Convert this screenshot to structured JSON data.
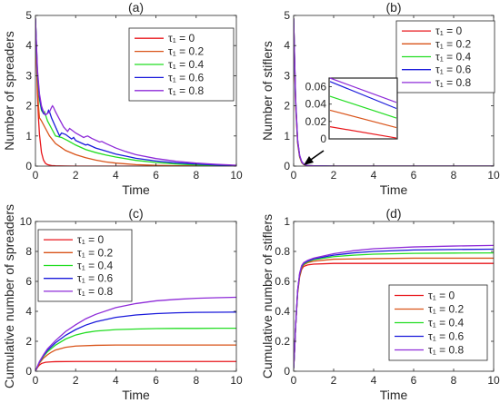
{
  "chart_data": [
    {
      "type": "line",
      "title": "(a)",
      "xlabel": "Time",
      "ylabel": "Number of spreaders",
      "xlim": [
        0,
        10
      ],
      "ylim": [
        0,
        5
      ],
      "xticks": [
        "0",
        "2",
        "4",
        "6",
        "8",
        "10"
      ],
      "yticks": [
        "0",
        "1",
        "2",
        "3",
        "4",
        "5"
      ],
      "legend_position": "top-right",
      "series": [
        {
          "name": "τ₁ = 0",
          "color": "#e8161b",
          "x": [
            0,
            0.05,
            0.1,
            0.15,
            0.2,
            0.3,
            0.4,
            0.5,
            0.6,
            0.8,
            1.0,
            1.2,
            1.5,
            2,
            3,
            5,
            10
          ],
          "y": [
            4.9,
            3.5,
            2.4,
            1.6,
            1.05,
            0.45,
            0.2,
            0.09,
            0.05,
            0.02,
            0.01,
            0.005,
            0.002,
            0.001,
            0,
            0,
            0
          ]
        },
        {
          "name": "τ₁ = 0.2",
          "color": "#d95319",
          "x": [
            0,
            0.05,
            0.1,
            0.15,
            0.2,
            0.25,
            0.3,
            0.5,
            0.7,
            1.0,
            1.5,
            2,
            2.5,
            3,
            3.5,
            4,
            5,
            6,
            7,
            8,
            10
          ],
          "y": [
            4.9,
            3.7,
            2.7,
            2.0,
            1.6,
            1.55,
            1.5,
            1.25,
            1.0,
            0.75,
            0.52,
            0.38,
            0.28,
            0.2,
            0.14,
            0.1,
            0.05,
            0.025,
            0.012,
            0.006,
            0
          ]
        },
        {
          "name": "τ₁ = 0.4",
          "color": "#22dd22",
          "x": [
            0,
            0.1,
            0.2,
            0.3,
            0.4,
            0.45,
            0.5,
            0.6,
            0.8,
            1.0,
            1.3,
            1.6,
            2,
            2.5,
            3,
            3.5,
            4,
            5,
            6,
            7,
            8,
            9,
            10
          ],
          "y": [
            4.9,
            3.0,
            2.2,
            1.85,
            1.75,
            1.8,
            1.7,
            1.5,
            1.25,
            1.0,
            0.95,
            0.85,
            0.7,
            0.55,
            0.45,
            0.37,
            0.3,
            0.19,
            0.12,
            0.07,
            0.04,
            0.02,
            0.01
          ]
        },
        {
          "name": "τ₁ = 0.6",
          "color": "#1a1adb",
          "x": [
            0,
            0.1,
            0.2,
            0.3,
            0.4,
            0.5,
            0.6,
            0.65,
            0.7,
            0.8,
            1.0,
            1.2,
            1.25,
            1.3,
            1.5,
            1.8,
            1.9,
            2.0,
            2.5,
            2.6,
            3,
            3.5,
            4,
            4.5,
            5,
            6,
            7,
            8,
            9,
            10
          ],
          "y": [
            4.9,
            3.1,
            2.3,
            1.9,
            1.75,
            1.7,
            1.75,
            1.85,
            1.8,
            1.6,
            1.3,
            1.0,
            1.05,
            1.1,
            1.05,
            0.9,
            0.95,
            0.85,
            0.7,
            0.72,
            0.6,
            0.5,
            0.4,
            0.33,
            0.26,
            0.17,
            0.11,
            0.07,
            0.04,
            0.02
          ]
        },
        {
          "name": "τ₁ = 0.8",
          "color": "#8e2bd8",
          "x": [
            0,
            0.1,
            0.2,
            0.3,
            0.4,
            0.5,
            0.6,
            0.7,
            0.8,
            0.85,
            0.9,
            1.0,
            1.2,
            1.4,
            1.6,
            1.65,
            1.7,
            1.8,
            2.0,
            2.4,
            2.5,
            2.6,
            2.8,
            3.2,
            3.3,
            3.5,
            4,
            4.5,
            5,
            6,
            7,
            8,
            9,
            10
          ],
          "y": [
            4.9,
            3.2,
            2.4,
            2.0,
            1.8,
            1.7,
            1.75,
            1.8,
            1.95,
            2.0,
            1.95,
            1.8,
            1.55,
            1.3,
            1.15,
            1.2,
            1.25,
            1.2,
            1.1,
            0.95,
            0.98,
            1.0,
            0.92,
            0.8,
            0.82,
            0.75,
            0.6,
            0.48,
            0.38,
            0.25,
            0.16,
            0.1,
            0.06,
            0.03
          ]
        }
      ]
    },
    {
      "type": "line",
      "title": "(b)",
      "xlabel": "Time",
      "ylabel": "Number of stiflers",
      "xlim": [
        0,
        10
      ],
      "ylim": [
        0,
        5
      ],
      "xticks": [
        "0",
        "2",
        "4",
        "6",
        "8",
        "10"
      ],
      "yticks": [
        "0",
        "1",
        "2",
        "3",
        "4",
        "5"
      ],
      "legend_position": "top-right",
      "series": [
        {
          "name": "τ₁ = 0",
          "color": "#e8161b",
          "x": [
            0,
            0.05,
            0.1,
            0.2,
            0.3,
            0.4,
            0.5,
            0.7,
            1,
            2,
            10
          ],
          "y": [
            4.9,
            3.3,
            2.0,
            0.75,
            0.3,
            0.12,
            0.05,
            0.01,
            0,
            0,
            0
          ]
        },
        {
          "name": "τ₁ = 0.2",
          "color": "#d95319",
          "x": [
            0,
            0.05,
            0.1,
            0.2,
            0.3,
            0.4,
            0.5,
            0.7,
            1,
            2,
            10
          ],
          "y": [
            4.9,
            3.4,
            2.1,
            0.8,
            0.32,
            0.13,
            0.06,
            0.02,
            0.01,
            0,
            0
          ]
        },
        {
          "name": "τ₁ = 0.4",
          "color": "#22dd22",
          "x": [
            0,
            0.05,
            0.1,
            0.2,
            0.3,
            0.4,
            0.5,
            0.7,
            1,
            2,
            10
          ],
          "y": [
            4.9,
            3.45,
            2.15,
            0.82,
            0.33,
            0.14,
            0.06,
            0.02,
            0.01,
            0,
            0
          ]
        },
        {
          "name": "τ₁ = 0.6",
          "color": "#1a1adb",
          "x": [
            0,
            0.05,
            0.1,
            0.2,
            0.3,
            0.4,
            0.5,
            0.7,
            1,
            2,
            10
          ],
          "y": [
            4.9,
            3.5,
            2.2,
            0.85,
            0.35,
            0.15,
            0.07,
            0.02,
            0.01,
            0,
            0
          ]
        },
        {
          "name": "τ₁ = 0.8",
          "color": "#8e2bd8",
          "x": [
            0,
            0.05,
            0.1,
            0.2,
            0.3,
            0.4,
            0.5,
            0.7,
            1,
            2,
            10
          ],
          "y": [
            4.9,
            3.55,
            2.25,
            0.88,
            0.36,
            0.16,
            0.07,
            0.02,
            0.01,
            0,
            0
          ]
        }
      ],
      "inset": {
        "yticks": [
          "0",
          "0.02",
          "0.04",
          "0.06"
        ],
        "series": [
          {
            "name": "τ₁ = 0",
            "color": "#e8161b",
            "y_start": 0.014,
            "y_end": 0.001
          },
          {
            "name": "τ₁ = 0.2",
            "color": "#d95319",
            "y_start": 0.033,
            "y_end": 0.013
          },
          {
            "name": "τ₁ = 0.4",
            "color": "#22dd22",
            "y_start": 0.049,
            "y_end": 0.024
          },
          {
            "name": "τ₁ = 0.6",
            "color": "#1a1adb",
            "y_start": 0.066,
            "y_end": 0.035
          },
          {
            "name": "τ₁ = 0.8",
            "color": "#8e2bd8",
            "y_start": 0.07,
            "y_end": 0.042
          }
        ]
      }
    },
    {
      "type": "line",
      "title": "(c)",
      "xlabel": "Time",
      "ylabel": "Cumulative number of spreaders",
      "xlim": [
        0,
        10
      ],
      "ylim": [
        0,
        10
      ],
      "xticks": [
        "0",
        "2",
        "4",
        "6",
        "8",
        "10"
      ],
      "yticks": [
        "0",
        "2",
        "4",
        "6",
        "8",
        "10"
      ],
      "legend_position": "top-left",
      "series": [
        {
          "name": "τ₁ = 0",
          "color": "#e8161b",
          "x": [
            0,
            0.1,
            0.2,
            0.3,
            0.5,
            0.8,
            1,
            2,
            4,
            6,
            8,
            10
          ],
          "y": [
            0.02,
            0.25,
            0.42,
            0.52,
            0.6,
            0.63,
            0.64,
            0.65,
            0.65,
            0.65,
            0.65,
            0.65
          ]
        },
        {
          "name": "τ₁ = 0.2",
          "color": "#d95319",
          "x": [
            0,
            0.2,
            0.4,
            0.6,
            0.8,
            1,
            1.5,
            2,
            3,
            4,
            5,
            6,
            8,
            10
          ],
          "y": [
            0.02,
            0.55,
            0.88,
            1.1,
            1.28,
            1.42,
            1.6,
            1.68,
            1.73,
            1.75,
            1.75,
            1.75,
            1.75,
            1.75
          ]
        },
        {
          "name": "τ₁ = 0.4",
          "color": "#22dd22",
          "x": [
            0,
            0.2,
            0.4,
            0.6,
            1,
            1.5,
            2,
            2.5,
            3,
            4,
            5,
            6,
            7,
            8,
            9,
            10
          ],
          "y": [
            0.02,
            0.6,
            1.0,
            1.3,
            1.75,
            2.15,
            2.42,
            2.58,
            2.68,
            2.78,
            2.82,
            2.85,
            2.86,
            2.86,
            2.87,
            2.87
          ]
        },
        {
          "name": "τ₁ = 0.6",
          "color": "#1a1adb",
          "x": [
            0,
            0.2,
            0.4,
            0.6,
            1,
            1.5,
            2,
            2.5,
            3,
            4,
            5,
            6,
            7,
            8,
            9,
            10
          ],
          "y": [
            0.02,
            0.62,
            1.05,
            1.4,
            1.9,
            2.4,
            2.78,
            3.08,
            3.3,
            3.6,
            3.76,
            3.85,
            3.9,
            3.93,
            3.94,
            3.95
          ]
        },
        {
          "name": "τ₁ = 0.8",
          "color": "#8e2bd8",
          "x": [
            0,
            0.2,
            0.4,
            0.6,
            1,
            1.5,
            2,
            2.5,
            3,
            4,
            5,
            6,
            7,
            8,
            9,
            10
          ],
          "y": [
            0.02,
            0.65,
            1.1,
            1.5,
            2.05,
            2.65,
            3.1,
            3.5,
            3.8,
            4.25,
            4.52,
            4.7,
            4.8,
            4.87,
            4.91,
            4.94
          ]
        }
      ]
    },
    {
      "type": "line",
      "title": "(d)",
      "xlabel": "Time",
      "ylabel": "Cumulative number of stiflers",
      "xlim": [
        0,
        10
      ],
      "ylim": [
        0,
        1
      ],
      "xticks": [
        "0",
        "2",
        "4",
        "6",
        "8",
        "10"
      ],
      "yticks": [
        "0",
        "0.2",
        "0.4",
        "0.6",
        "0.8",
        "1"
      ],
      "legend_position": "bottom-right",
      "series": [
        {
          "name": "τ₁ = 0",
          "color": "#e8161b",
          "x": [
            0,
            0.05,
            0.1,
            0.2,
            0.3,
            0.4,
            0.5,
            0.7,
            1,
            2,
            4,
            6,
            8,
            10
          ],
          "y": [
            0.02,
            0.15,
            0.3,
            0.52,
            0.63,
            0.68,
            0.7,
            0.71,
            0.715,
            0.72,
            0.72,
            0.72,
            0.72,
            0.72
          ]
        },
        {
          "name": "τ₁ = 0.2",
          "color": "#d95319",
          "x": [
            0,
            0.05,
            0.1,
            0.2,
            0.3,
            0.4,
            0.5,
            0.7,
            1,
            2,
            4,
            6,
            8,
            10
          ],
          "y": [
            0.02,
            0.15,
            0.3,
            0.53,
            0.64,
            0.69,
            0.71,
            0.725,
            0.735,
            0.748,
            0.752,
            0.755,
            0.755,
            0.755
          ]
        },
        {
          "name": "τ₁ = 0.4",
          "color": "#22dd22",
          "x": [
            0,
            0.05,
            0.1,
            0.2,
            0.3,
            0.4,
            0.5,
            0.7,
            1,
            2,
            3,
            4,
            6,
            8,
            10
          ],
          "y": [
            0.02,
            0.15,
            0.3,
            0.53,
            0.645,
            0.695,
            0.715,
            0.73,
            0.745,
            0.765,
            0.775,
            0.782,
            0.787,
            0.789,
            0.79
          ]
        },
        {
          "name": "τ₁ = 0.6",
          "color": "#1a1adb",
          "x": [
            0,
            0.05,
            0.1,
            0.2,
            0.3,
            0.4,
            0.5,
            0.7,
            1,
            2,
            3,
            4,
            6,
            8,
            10
          ],
          "y": [
            0.02,
            0.15,
            0.3,
            0.54,
            0.65,
            0.7,
            0.72,
            0.735,
            0.75,
            0.775,
            0.79,
            0.8,
            0.81,
            0.813,
            0.815
          ]
        },
        {
          "name": "τ₁ = 0.8",
          "color": "#8e2bd8",
          "x": [
            0,
            0.05,
            0.1,
            0.2,
            0.3,
            0.4,
            0.5,
            0.7,
            1,
            2,
            3,
            4,
            6,
            8,
            10
          ],
          "y": [
            0.02,
            0.15,
            0.3,
            0.54,
            0.655,
            0.705,
            0.725,
            0.74,
            0.755,
            0.785,
            0.805,
            0.818,
            0.83,
            0.836,
            0.84
          ]
        }
      ]
    }
  ]
}
